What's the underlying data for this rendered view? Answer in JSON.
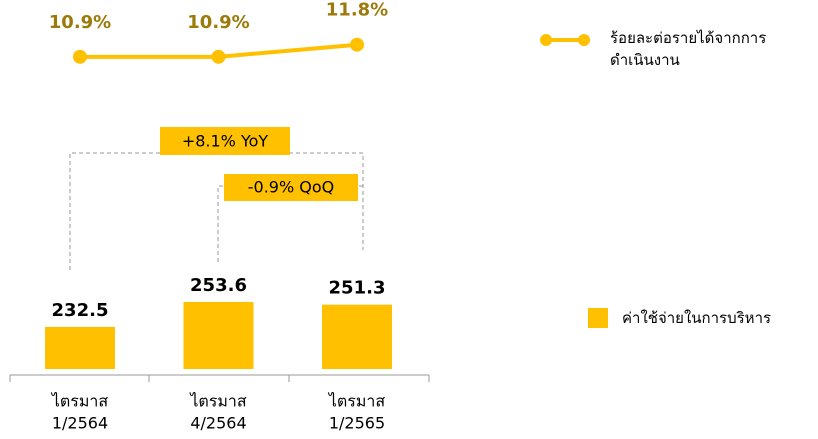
{
  "chart_data": {
    "type": "bar_line",
    "categories": [
      [
        "ไตรมาส",
        "1/2564"
      ],
      [
        "ไตรมาส",
        "4/2564"
      ],
      [
        "ไตรมาส",
        "1/2565"
      ]
    ],
    "series": [
      {
        "name": "ค่าใช้จ่ายในการบริหาร",
        "type": "bar",
        "color": "#ffc000",
        "values": [
          232.5,
          253.6,
          251.3
        ]
      },
      {
        "name": "ร้อยละต่อรายได้จากการดำเนินงาน",
        "type": "line",
        "axis": "y2",
        "color": "#ffc000",
        "label_color": "#9c7a0a",
        "values": [
          10.9,
          10.9,
          11.8
        ],
        "value_labels": [
          "10.9%",
          "10.9%",
          "11.8%"
        ]
      }
    ],
    "annotations": [
      "+8.1% YoY",
      "-0.9% QoQ"
    ],
    "ylim": [
      197,
      300
    ],
    "y2lim": [
      10,
      12
    ]
  }
}
